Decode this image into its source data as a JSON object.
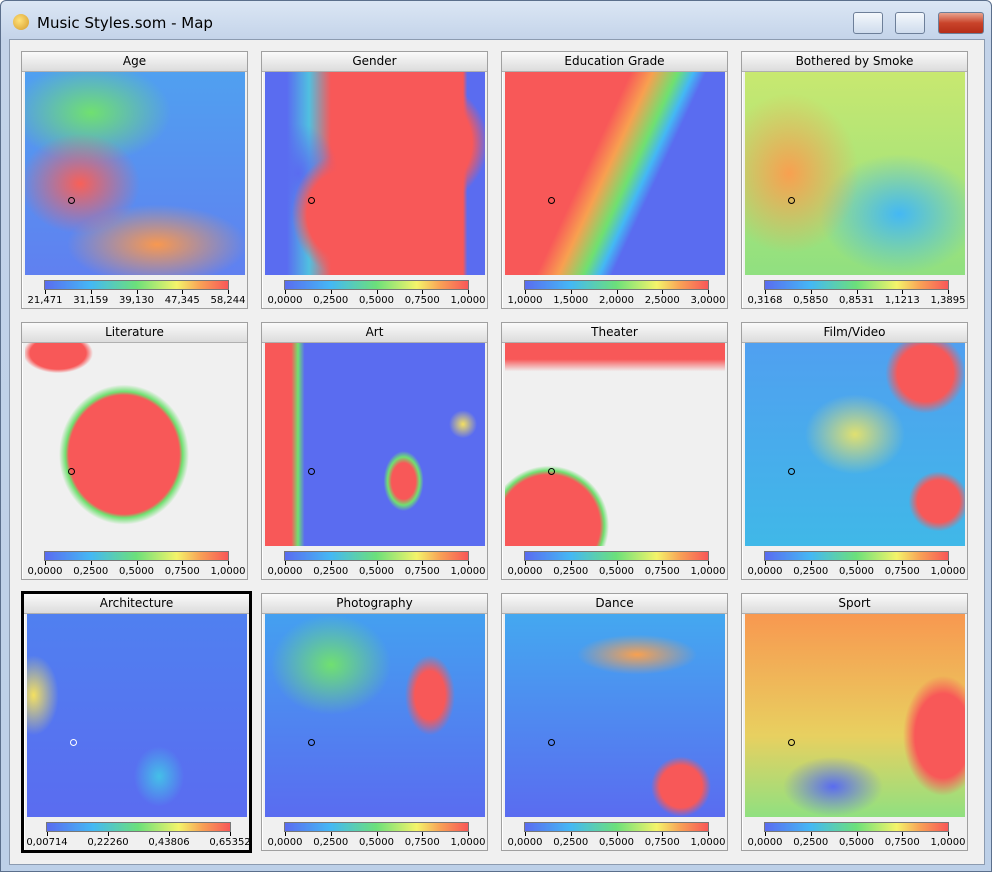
{
  "window": {
    "title": "Music Styles.som - Map"
  },
  "panels": [
    {
      "title": "Age",
      "ticks": [
        "21,471",
        "31,159",
        "39,130",
        "47,345",
        "58,244"
      ]
    },
    {
      "title": "Gender",
      "ticks": [
        "0,0000",
        "0,2500",
        "0,5000",
        "0,7500",
        "1,0000"
      ]
    },
    {
      "title": "Education Grade",
      "ticks": [
        "1,0000",
        "1,5000",
        "2,0000",
        "2,5000",
        "3,0000"
      ]
    },
    {
      "title": "Bothered by Smoke",
      "ticks": [
        "0,3168",
        "0,5850",
        "0,8531",
        "1,1213",
        "1,3895"
      ]
    },
    {
      "title": "Literature",
      "ticks": [
        "0,0000",
        "0,2500",
        "0,5000",
        "0,7500",
        "1,0000"
      ]
    },
    {
      "title": "Art",
      "ticks": [
        "0,0000",
        "0,2500",
        "0,5000",
        "0,7500",
        "1,0000"
      ]
    },
    {
      "title": "Theater",
      "ticks": [
        "0,0000",
        "0,2500",
        "0,5000",
        "0,7500",
        "1,0000"
      ]
    },
    {
      "title": "Film/Video",
      "ticks": [
        "0,0000",
        "0,2500",
        "0,5000",
        "0,7500",
        "1,0000"
      ]
    },
    {
      "title": "Architecture",
      "ticks": [
        "0,00714",
        "0,22260",
        "0,43806",
        "0,65352"
      ]
    },
    {
      "title": "Photography",
      "ticks": [
        "0,0000",
        "0,2500",
        "0,5000",
        "0,7500",
        "1,0000"
      ]
    },
    {
      "title": "Dance",
      "ticks": [
        "0,0000",
        "0,2500",
        "0,5000",
        "0,7500",
        "1,0000"
      ]
    },
    {
      "title": "Sport",
      "ticks": [
        "0,0000",
        "0,2500",
        "0,5000",
        "0,7500",
        "1,0000"
      ]
    }
  ]
}
